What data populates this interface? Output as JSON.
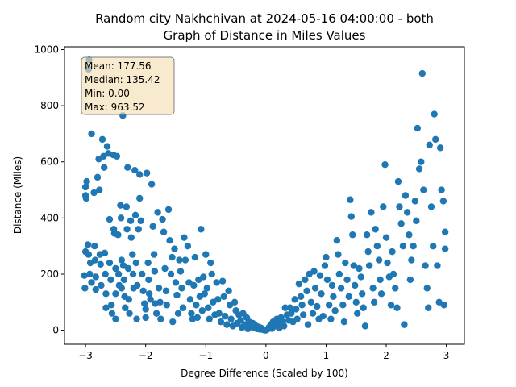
{
  "chart_data": {
    "type": "scatter",
    "title_lines": [
      "Random city Nakhchivan at 2024-05-16 04:00:00  - both",
      "Graph of Distance in Miles Values"
    ],
    "xlabel": "Degree Difference (Scaled by 100)",
    "ylabel": "Distance (Miles)",
    "xlim": [
      -3.35,
      3.3
    ],
    "ylim": [
      -50,
      1010
    ],
    "xticks": [
      -3,
      -2,
      -1,
      0,
      1,
      2,
      3
    ],
    "yticks": [
      0,
      200,
      400,
      600,
      800,
      1000
    ],
    "grid": false,
    "marker_color": "#1f77b4",
    "stats_box": {
      "lines": [
        "Mean: 177.56",
        "Median: 135.42",
        "Min: 0.00",
        "Max: 963.52"
      ],
      "background": "#f5deb3",
      "placement": "top-left"
    },
    "series": [
      {
        "values": [
          [
            -2.94,
            963.52
          ],
          [
            -2.95,
            930
          ],
          [
            -2.98,
            530
          ],
          [
            -3.0,
            510
          ],
          [
            -3.0,
            480
          ],
          [
            -2.99,
            470
          ],
          [
            -3.0,
            280
          ],
          [
            -3.02,
            195
          ],
          [
            -3.01,
            150
          ],
          [
            -2.96,
            305
          ],
          [
            -2.95,
            270
          ],
          [
            -2.92,
            240
          ],
          [
            -2.93,
            200
          ],
          [
            -2.9,
            170
          ],
          [
            -2.9,
            700
          ],
          [
            -2.86,
            490
          ],
          [
            -2.85,
            300
          ],
          [
            -2.84,
            250
          ],
          [
            -2.83,
            190
          ],
          [
            -2.83,
            145
          ],
          [
            -2.8,
            545
          ],
          [
            -2.78,
            610
          ],
          [
            -2.77,
            500
          ],
          [
            -2.76,
            270
          ],
          [
            -2.75,
            235
          ],
          [
            -2.74,
            160
          ],
          [
            -2.72,
            680
          ],
          [
            -2.7,
            620
          ],
          [
            -2.69,
            580
          ],
          [
            -2.68,
            275
          ],
          [
            -2.67,
            200
          ],
          [
            -2.66,
            130
          ],
          [
            -2.66,
            80
          ],
          [
            -2.64,
            655
          ],
          [
            -2.62,
            630
          ],
          [
            -2.6,
            395
          ],
          [
            -2.6,
            240
          ],
          [
            -2.58,
            180
          ],
          [
            -2.57,
            90
          ],
          [
            -2.56,
            60
          ],
          [
            -2.54,
            625
          ],
          [
            -2.53,
            360
          ],
          [
            -2.52,
            345
          ],
          [
            -2.5,
            220
          ],
          [
            -2.5,
            130
          ],
          [
            -2.5,
            40
          ],
          [
            -2.48,
            620
          ],
          [
            -2.46,
            340
          ],
          [
            -2.45,
            200
          ],
          [
            -2.44,
            160
          ],
          [
            -2.42,
            445
          ],
          [
            -2.41,
            400
          ],
          [
            -2.4,
            250
          ],
          [
            -2.4,
            150
          ],
          [
            -2.38,
            765
          ],
          [
            -2.37,
            230
          ],
          [
            -2.36,
            180
          ],
          [
            -2.35,
            120
          ],
          [
            -2.34,
            80
          ],
          [
            -2.32,
            440
          ],
          [
            -2.31,
            360
          ],
          [
            -2.3,
            580
          ],
          [
            -2.29,
            220
          ],
          [
            -2.28,
            110
          ],
          [
            -2.27,
            60
          ],
          [
            -2.25,
            390
          ],
          [
            -2.24,
            330
          ],
          [
            -2.22,
            270
          ],
          [
            -2.21,
            200
          ],
          [
            -2.2,
            150
          ],
          [
            -2.18,
            570
          ],
          [
            -2.17,
            410
          ],
          [
            -2.16,
            240
          ],
          [
            -2.15,
            40
          ],
          [
            -2.14,
            160
          ],
          [
            -2.12,
            360
          ],
          [
            -2.1,
            555
          ],
          [
            -2.1,
            470
          ],
          [
            -2.08,
            390
          ],
          [
            -2.06,
            200
          ],
          [
            -2.04,
            140
          ],
          [
            -2.02,
            95
          ],
          [
            -2.0,
            75
          ],
          [
            -2.0,
            45
          ],
          [
            -1.98,
            560
          ],
          [
            -1.96,
            240
          ],
          [
            -1.95,
            180
          ],
          [
            -1.94,
            130
          ],
          [
            -1.92,
            110
          ],
          [
            -1.9,
            520
          ],
          [
            -1.88,
            370
          ],
          [
            -1.86,
            270
          ],
          [
            -1.85,
            210
          ],
          [
            -1.84,
            95
          ],
          [
            -1.82,
            60
          ],
          [
            -1.8,
            420
          ],
          [
            -1.78,
            150
          ],
          [
            -1.76,
            100
          ],
          [
            -1.75,
            40
          ],
          [
            -1.72,
            395
          ],
          [
            -1.7,
            350
          ],
          [
            -1.68,
            220
          ],
          [
            -1.66,
            140
          ],
          [
            -1.65,
            90
          ],
          [
            -1.62,
            430
          ],
          [
            -1.6,
            320
          ],
          [
            -1.58,
            200
          ],
          [
            -1.56,
            260
          ],
          [
            -1.55,
            30
          ],
          [
            -1.52,
            290
          ],
          [
            -1.5,
            170
          ],
          [
            -1.48,
            125
          ],
          [
            -1.46,
            60
          ],
          [
            -1.44,
            250
          ],
          [
            -1.42,
            210
          ],
          [
            -1.4,
            150
          ],
          [
            -1.38,
            80
          ],
          [
            -1.36,
            330
          ],
          [
            -1.34,
            250
          ],
          [
            -1.3,
            300
          ],
          [
            -1.28,
            170
          ],
          [
            -1.26,
            110
          ],
          [
            -1.24,
            60
          ],
          [
            -1.22,
            40
          ],
          [
            -1.2,
            160
          ],
          [
            -1.18,
            260
          ],
          [
            -1.16,
            90
          ],
          [
            -1.14,
            45
          ],
          [
            -1.12,
            180
          ],
          [
            -1.1,
            120
          ],
          [
            -1.08,
            360
          ],
          [
            -1.06,
            70
          ],
          [
            -1.04,
            190
          ],
          [
            -1.02,
            130
          ],
          [
            -1.0,
            270
          ],
          [
            -0.98,
            150
          ],
          [
            -0.96,
            80
          ],
          [
            -0.94,
            40
          ],
          [
            -0.92,
            240
          ],
          [
            -0.9,
            200
          ],
          [
            -0.88,
            100
          ],
          [
            -0.85,
            55
          ],
          [
            -0.82,
            170
          ],
          [
            -0.8,
            110
          ],
          [
            -0.78,
            60
          ],
          [
            -0.75,
            30
          ],
          [
            -0.72,
            175
          ],
          [
            -0.7,
            120
          ],
          [
            -0.68,
            50
          ],
          [
            -0.65,
            20
          ],
          [
            -0.62,
            140
          ],
          [
            -0.6,
            90
          ],
          [
            -0.58,
            40
          ],
          [
            -0.55,
            15
          ],
          [
            -0.52,
            100
          ],
          [
            -0.5,
            70
          ],
          [
            -0.48,
            25
          ],
          [
            -0.45,
            55
          ],
          [
            -0.42,
            35
          ],
          [
            -0.4,
            10
          ],
          [
            -0.38,
            60
          ],
          [
            -0.35,
            20
          ],
          [
            -0.32,
            45
          ],
          [
            -0.3,
            5
          ],
          [
            -0.28,
            30
          ],
          [
            -0.25,
            15
          ],
          [
            -0.22,
            25
          ],
          [
            -0.2,
            8
          ],
          [
            -0.18,
            18
          ],
          [
            -0.15,
            5
          ],
          [
            -0.12,
            12
          ],
          [
            -0.1,
            3
          ],
          [
            -0.08,
            8
          ],
          [
            -0.05,
            2
          ],
          [
            -0.02,
            0
          ],
          [
            0.0,
            0
          ],
          [
            0.03,
            4
          ],
          [
            0.05,
            10
          ],
          [
            0.08,
            20
          ],
          [
            0.1,
            6
          ],
          [
            0.12,
            30
          ],
          [
            0.15,
            15
          ],
          [
            0.18,
            40
          ],
          [
            0.2,
            25
          ],
          [
            0.22,
            8
          ],
          [
            0.25,
            45
          ],
          [
            0.28,
            30
          ],
          [
            0.3,
            15
          ],
          [
            0.32,
            80
          ],
          [
            0.35,
            55
          ],
          [
            0.38,
            35
          ],
          [
            0.4,
            80
          ],
          [
            0.42,
            60
          ],
          [
            0.45,
            30
          ],
          [
            0.48,
            110
          ],
          [
            0.5,
            75
          ],
          [
            0.52,
            40
          ],
          [
            0.55,
            165
          ],
          [
            0.58,
            120
          ],
          [
            0.6,
            90
          ],
          [
            0.62,
            55
          ],
          [
            0.65,
            180
          ],
          [
            0.68,
            140
          ],
          [
            0.7,
            20
          ],
          [
            0.72,
            200
          ],
          [
            0.75,
            100
          ],
          [
            0.78,
            60
          ],
          [
            0.8,
            210
          ],
          [
            0.82,
            150
          ],
          [
            0.85,
            85
          ],
          [
            0.88,
            40
          ],
          [
            0.9,
            195
          ],
          [
            0.92,
            130
          ],
          [
            0.95,
            50
          ],
          [
            0.98,
            230
          ],
          [
            1.0,
            260
          ],
          [
            1.02,
            180
          ],
          [
            1.05,
            90
          ],
          [
            1.08,
            40
          ],
          [
            1.1,
            160
          ],
          [
            1.12,
            120
          ],
          [
            1.15,
            70
          ],
          [
            1.18,
            320
          ],
          [
            1.2,
            270
          ],
          [
            1.22,
            200
          ],
          [
            1.25,
            150
          ],
          [
            1.28,
            90
          ],
          [
            1.3,
            30
          ],
          [
            1.32,
            240
          ],
          [
            1.35,
            180
          ],
          [
            1.38,
            120
          ],
          [
            1.4,
            465
          ],
          [
            1.42,
            405
          ],
          [
            1.44,
            340
          ],
          [
            1.46,
            230
          ],
          [
            1.48,
            160
          ],
          [
            1.5,
            100
          ],
          [
            1.52,
            60
          ],
          [
            1.55,
            220
          ],
          [
            1.58,
            190
          ],
          [
            1.6,
            130
          ],
          [
            1.62,
            80
          ],
          [
            1.65,
            15
          ],
          [
            1.68,
            340
          ],
          [
            1.7,
            280
          ],
          [
            1.72,
            230
          ],
          [
            1.75,
            420
          ],
          [
            1.78,
            150
          ],
          [
            1.8,
            100
          ],
          [
            1.82,
            360
          ],
          [
            1.85,
            300
          ],
          [
            1.88,
            250
          ],
          [
            1.9,
            180
          ],
          [
            1.92,
            130
          ],
          [
            1.95,
            440
          ],
          [
            1.98,
            590
          ],
          [
            2.0,
            330
          ],
          [
            2.02,
            240
          ],
          [
            2.05,
            190
          ],
          [
            2.08,
            90
          ],
          [
            2.1,
            280
          ],
          [
            2.12,
            200
          ],
          [
            2.15,
            150
          ],
          [
            2.18,
            80
          ],
          [
            2.2,
            530
          ],
          [
            2.22,
            440
          ],
          [
            2.25,
            380
          ],
          [
            2.28,
            300
          ],
          [
            2.3,
            20
          ],
          [
            2.32,
            480
          ],
          [
            2.35,
            420
          ],
          [
            2.38,
            340
          ],
          [
            2.4,
            180
          ],
          [
            2.42,
            250
          ],
          [
            2.45,
            300
          ],
          [
            2.48,
            460
          ],
          [
            2.5,
            390
          ],
          [
            2.52,
            720
          ],
          [
            2.55,
            575
          ],
          [
            2.58,
            600
          ],
          [
            2.6,
            915
          ],
          [
            2.62,
            500
          ],
          [
            2.65,
            230
          ],
          [
            2.68,
            150
          ],
          [
            2.7,
            80
          ],
          [
            2.72,
            660
          ],
          [
            2.75,
            440
          ],
          [
            2.78,
            300
          ],
          [
            2.8,
            770
          ],
          [
            2.82,
            680
          ],
          [
            2.85,
            230
          ],
          [
            2.88,
            100
          ],
          [
            2.9,
            650
          ],
          [
            2.92,
            500
          ],
          [
            2.95,
            460
          ],
          [
            2.98,
            350
          ],
          [
            2.98,
            290
          ],
          [
            2.96,
            90
          ]
        ]
      }
    ]
  }
}
